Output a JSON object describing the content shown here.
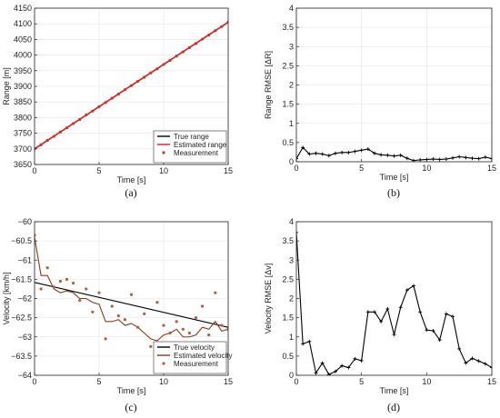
{
  "chart_data": [
    {
      "id": "a",
      "type": "line",
      "caption": "(a)",
      "xlabel": "Time [s]",
      "ylabel": "Range [m]",
      "xlim": [
        0,
        15
      ],
      "ylim": [
        3650,
        4150
      ],
      "xticks": [
        0,
        5,
        10,
        15
      ],
      "yticks": [
        3650,
        3700,
        3750,
        3800,
        3850,
        3900,
        3950,
        4000,
        4050,
        4100,
        4150
      ],
      "grid": true,
      "legend": "bottom-right",
      "series": [
        {
          "name": "True range",
          "kind": "line",
          "color": "#000000",
          "x": [
            0,
            15
          ],
          "y": [
            3700,
            4105
          ]
        },
        {
          "name": "Estimated range",
          "kind": "line",
          "color": "#e8161b",
          "x": [
            0,
            15
          ],
          "y": [
            3700,
            4105
          ]
        },
        {
          "name": "Measurement",
          "kind": "scatter",
          "color": "#c0392b",
          "x": [
            0,
            0.5,
            1,
            1.5,
            2,
            2.5,
            3,
            3.5,
            4,
            4.5,
            5,
            5.5,
            6,
            6.5,
            7,
            7.5,
            8,
            8.5,
            9,
            9.5,
            10,
            10.5,
            11,
            11.5,
            12,
            12.5,
            13,
            13.5,
            14,
            14.5,
            15
          ],
          "y": [
            3700,
            3713,
            3727,
            3740,
            3754,
            3767,
            3781,
            3794,
            3808,
            3821,
            3835,
            3848,
            3862,
            3875,
            3889,
            3902,
            3916,
            3929,
            3943,
            3956,
            3970,
            3983,
            3997,
            4010,
            4024,
            4037,
            4051,
            4064,
            4078,
            4091,
            4105
          ]
        }
      ]
    },
    {
      "id": "b",
      "type": "line",
      "caption": "(b)",
      "xlabel": "Time [s]",
      "ylabel": "Range RMSE [ΔR]",
      "xlim": [
        0,
        15
      ],
      "ylim": [
        0,
        4
      ],
      "xticks": [
        0,
        5,
        10,
        15
      ],
      "yticks": [
        0,
        0.5,
        1,
        1.5,
        2,
        2.5,
        3,
        3.5,
        4
      ],
      "grid": true,
      "series": [
        {
          "kind": "line-marker",
          "color": "#000000",
          "x": [
            0,
            0.5,
            1,
            1.5,
            2,
            2.5,
            3,
            3.5,
            4,
            4.5,
            5,
            5.5,
            6,
            6.5,
            7,
            7.5,
            8,
            8.5,
            9,
            9.5,
            10,
            10.5,
            11,
            11.5,
            12,
            12.5,
            13,
            13.5,
            14,
            14.5,
            15
          ],
          "y": [
            0.08,
            0.37,
            0.2,
            0.22,
            0.2,
            0.16,
            0.22,
            0.24,
            0.24,
            0.27,
            0.3,
            0.33,
            0.22,
            0.18,
            0.17,
            0.15,
            0.17,
            0.09,
            0.03,
            0.05,
            0.06,
            0.07,
            0.06,
            0.07,
            0.1,
            0.13,
            0.11,
            0.09,
            0.08,
            0.12,
            0.08
          ]
        }
      ]
    },
    {
      "id": "c",
      "type": "line",
      "caption": "(c)",
      "xlabel": "Time [s]",
      "ylabel": "Velocity [km/h]",
      "xlim": [
        0,
        15
      ],
      "ylim": [
        -64,
        -60
      ],
      "xticks": [
        0,
        5,
        10,
        15
      ],
      "yticks": [
        -64,
        -63.5,
        -63,
        -62.5,
        -62,
        -61.5,
        -61,
        -60.5,
        -60
      ],
      "grid": true,
      "legend": "bottom-right",
      "series": [
        {
          "name": "True velocity",
          "kind": "line",
          "color": "#000000",
          "x": [
            0,
            15
          ],
          "y": [
            -61.58,
            -62.75
          ]
        },
        {
          "name": "Estimated velocity",
          "kind": "line",
          "color": "#8b3a1a",
          "x": [
            0,
            0.5,
            1,
            1.5,
            2,
            2.5,
            3,
            3.5,
            4,
            4.5,
            5,
            5.5,
            6,
            6.5,
            7,
            7.5,
            8,
            8.5,
            9,
            9.5,
            10,
            10.5,
            11,
            11.5,
            12,
            12.5,
            13,
            13.5,
            14,
            14.5,
            15
          ],
          "y": [
            -60.4,
            -61.4,
            -61.4,
            -61.75,
            -61.85,
            -61.8,
            -61.85,
            -62.0,
            -62.0,
            -62.1,
            -62.15,
            -62.6,
            -62.6,
            -62.55,
            -62.7,
            -62.65,
            -62.75,
            -62.9,
            -63.05,
            -63.1,
            -62.95,
            -62.9,
            -62.8,
            -63.0,
            -63.0,
            -62.95,
            -62.75,
            -62.8,
            -62.6,
            -62.85,
            -62.8
          ]
        },
        {
          "name": "Measurement",
          "kind": "scatter",
          "color": "#b06040",
          "x": [
            0,
            0.5,
            1,
            1.5,
            2,
            2.5,
            3,
            3.5,
            4,
            4.5,
            5,
            5.5,
            6,
            6.5,
            7,
            7.5,
            8,
            8.5,
            9,
            9.5,
            10,
            10.5,
            11,
            11.5,
            12,
            12.5,
            13,
            13.5,
            14,
            14.5,
            15
          ],
          "y": [
            -60.35,
            -61.75,
            -61.2,
            -61.7,
            -61.55,
            -61.5,
            -61.6,
            -62.05,
            -61.75,
            -62.35,
            -61.85,
            -63.05,
            -62.2,
            -62.45,
            -62.55,
            -61.9,
            -62.75,
            -62.4,
            -63.25,
            -62.1,
            -62.7,
            -62.9,
            -62.6,
            -62.8,
            -62.9,
            -62.5,
            -62.2,
            -62.95,
            -61.85,
            -62.7,
            -62.8
          ]
        }
      ]
    },
    {
      "id": "d",
      "type": "line",
      "caption": "(d)",
      "xlabel": "Time [s]",
      "ylabel": "Velocity RMSE [Δv]",
      "xlim": [
        0,
        15
      ],
      "ylim": [
        0,
        4
      ],
      "xticks": [
        0,
        5,
        10,
        15
      ],
      "yticks": [
        0,
        0.5,
        1,
        1.5,
        2,
        2.5,
        3,
        3.5,
        4
      ],
      "grid": false,
      "series": [
        {
          "kind": "line-marker",
          "color": "#000000",
          "x": [
            0,
            0.5,
            1,
            1.5,
            2,
            2.5,
            3,
            3.5,
            4,
            4.5,
            5,
            5.5,
            6,
            6.5,
            7,
            7.5,
            8,
            8.5,
            9,
            9.5,
            10,
            10.5,
            11,
            11.5,
            12,
            12.5,
            13,
            13.5,
            14,
            14.5,
            15
          ],
          "y": [
            3.72,
            0.82,
            0.88,
            0.06,
            0.32,
            0.02,
            0.1,
            0.25,
            0.2,
            0.43,
            0.38,
            1.65,
            1.65,
            1.4,
            1.73,
            1.06,
            1.77,
            2.22,
            2.33,
            1.65,
            1.18,
            1.16,
            0.92,
            1.6,
            1.53,
            0.69,
            0.32,
            0.44,
            0.37,
            0.3,
            0.2
          ]
        }
      ]
    }
  ]
}
